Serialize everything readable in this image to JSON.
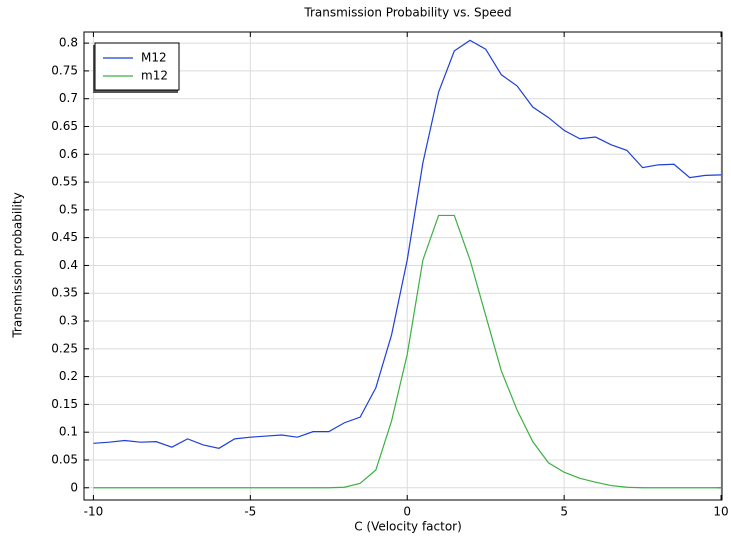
{
  "chart_data": {
    "type": "line",
    "title": "Transmission Probability vs. Speed",
    "xlabel": "C (Velocity factor)",
    "ylabel": "Transmission probability",
    "x": [
      -10,
      -9.5,
      -9,
      -8.5,
      -8,
      -7.5,
      -7,
      -6.5,
      -6,
      -5.5,
      -5,
      -4.5,
      -4,
      -3.5,
      -3,
      -2.5,
      -2,
      -1.5,
      -1,
      -0.5,
      0,
      0.5,
      1,
      1.5,
      2,
      2.5,
      3,
      3.5,
      4,
      4.5,
      5,
      5.5,
      6,
      6.5,
      7,
      7.5,
      8,
      8.5,
      9,
      9.5,
      10
    ],
    "series": [
      {
        "name": "M12",
        "color": "#1f3fd9",
        "values": [
          0.08,
          0.082,
          0.085,
          0.082,
          0.083,
          0.073,
          0.088,
          0.077,
          0.071,
          0.088,
          0.091,
          0.093,
          0.095,
          0.091,
          0.101,
          0.101,
          0.117,
          0.127,
          0.18,
          0.275,
          0.41,
          0.585,
          0.712,
          0.786,
          0.805,
          0.789,
          0.743,
          0.723,
          0.685,
          0.666,
          0.643,
          0.628,
          0.631,
          0.617,
          0.607,
          0.576,
          0.581,
          0.582,
          0.558,
          0.562,
          0.563
        ]
      },
      {
        "name": "m12",
        "color": "#3cb043",
        "values": [
          0,
          0,
          0,
          0,
          0,
          0,
          0,
          0,
          0,
          0,
          0,
          0,
          0,
          0,
          0,
          0,
          0.001,
          0.008,
          0.032,
          0.12,
          0.24,
          0.41,
          0.49,
          0.49,
          0.41,
          0.31,
          0.21,
          0.14,
          0.083,
          0.045,
          0.028,
          0.017,
          0.01,
          0.004,
          0.001,
          0,
          0,
          0,
          0,
          0,
          0
        ]
      }
    ],
    "xlim": [
      -10.3,
      10.03
    ],
    "ylim": [
      -0.022,
      0.82
    ],
    "xticks": [
      -10,
      -5,
      0,
      5,
      10
    ],
    "yticks": [
      0,
      0.05,
      0.1,
      0.15,
      0.2,
      0.25,
      0.3,
      0.35,
      0.4,
      0.45,
      0.5,
      0.55,
      0.6,
      0.65,
      0.7,
      0.75,
      0.8
    ],
    "grid": true,
    "legend": "upper left"
  }
}
